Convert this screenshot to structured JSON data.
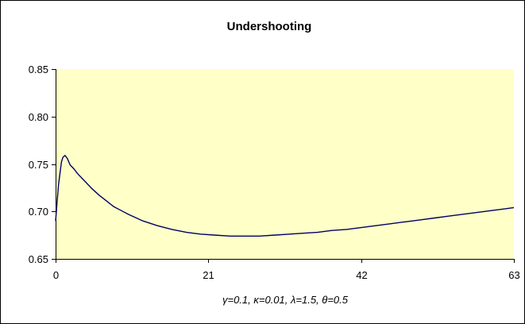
{
  "chart_data": {
    "type": "line",
    "title": "Undershooting",
    "xlabel": "γ=0.1, κ=0.01, λ=1.5, θ=0.5",
    "ylabel": "",
    "xlim": [
      0,
      63
    ],
    "ylim": [
      0.65,
      0.85
    ],
    "x_ticks": [
      0,
      21,
      42,
      63
    ],
    "y_ticks": [
      0.65,
      0.7,
      0.75,
      0.8,
      0.85
    ],
    "x_tick_labels": [
      "0",
      "21",
      "42",
      "63"
    ],
    "y_tick_labels": [
      "0.65",
      "0.70",
      "0.75",
      "0.80",
      "0.85"
    ],
    "grid": false,
    "legend": "none",
    "plot_background": "#ffffc8",
    "line_color": "#000066",
    "series": [
      {
        "x": [
          0,
          0.4,
          0.8,
          1.0,
          1.3,
          1.6,
          2.0,
          2.5,
          3,
          4,
          5,
          6,
          7,
          8,
          9,
          10,
          12,
          14,
          16,
          18,
          20,
          22,
          24,
          26,
          28,
          30,
          32,
          34,
          36,
          38,
          40,
          42,
          44,
          46,
          48,
          50,
          52,
          54,
          56,
          58,
          60,
          62,
          63
        ],
        "y": [
          0.69,
          0.728,
          0.752,
          0.757,
          0.759,
          0.756,
          0.749,
          0.745,
          0.74,
          0.732,
          0.724,
          0.717,
          0.711,
          0.705,
          0.701,
          0.697,
          0.69,
          0.685,
          0.681,
          0.678,
          0.676,
          0.675,
          0.674,
          0.674,
          0.674,
          0.675,
          0.676,
          0.677,
          0.678,
          0.68,
          0.681,
          0.683,
          0.685,
          0.687,
          0.689,
          0.691,
          0.693,
          0.695,
          0.697,
          0.699,
          0.701,
          0.703,
          0.704
        ]
      }
    ]
  }
}
